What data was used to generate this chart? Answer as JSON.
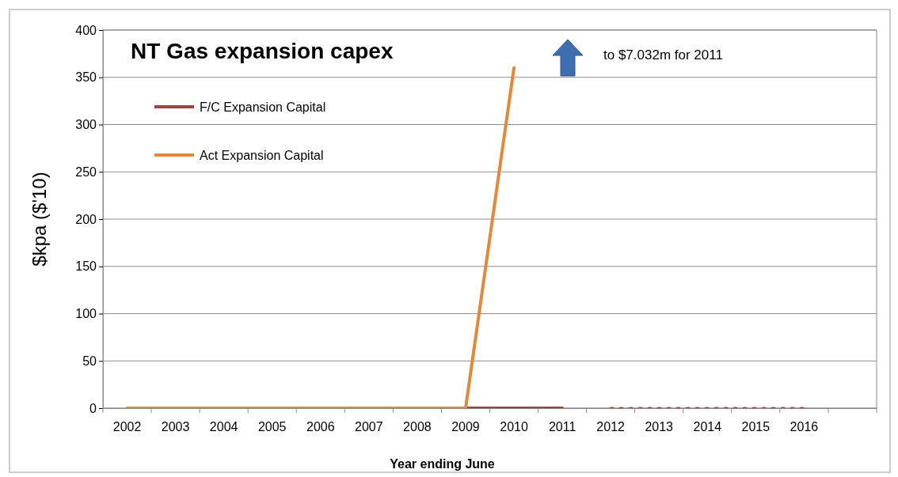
{
  "chart_data": {
    "type": "line",
    "title": "NT Gas expansion capex",
    "xlabel": "Year ending June",
    "ylabel": "$kpa ($'10)",
    "categories": [
      "2002",
      "2003",
      "2004",
      "2005",
      "2006",
      "2007",
      "2008",
      "2009",
      "2010",
      "2011",
      "2012",
      "2013",
      "2014",
      "2015",
      "2016",
      null
    ],
    "series": [
      {
        "name": "F/C Expansion Capital",
        "color": "#a0413c",
        "values": [
          null,
          null,
          null,
          null,
          null,
          null,
          null,
          0,
          0,
          0,
          null,
          null,
          null,
          null,
          null,
          null
        ]
      },
      {
        "color": "#a0413c",
        "line_style": "dotted",
        "values": [
          null,
          null,
          null,
          null,
          null,
          null,
          null,
          null,
          null,
          null,
          0,
          0,
          0,
          0,
          0,
          null
        ]
      },
      {
        "name": "Act Expansion Capital",
        "color": "#e3883a",
        "values": [
          0,
          0,
          0,
          0,
          0,
          0,
          0,
          0,
          360,
          null,
          null,
          null,
          null,
          null,
          null,
          null
        ]
      }
    ],
    "ylim": [
      0,
      400
    ],
    "yticks": [
      0,
      50,
      100,
      150,
      200,
      250,
      300,
      350,
      400
    ],
    "grid": "y",
    "legend": "top left",
    "annotations": [
      "to $7.032m for 2011"
    ]
  }
}
